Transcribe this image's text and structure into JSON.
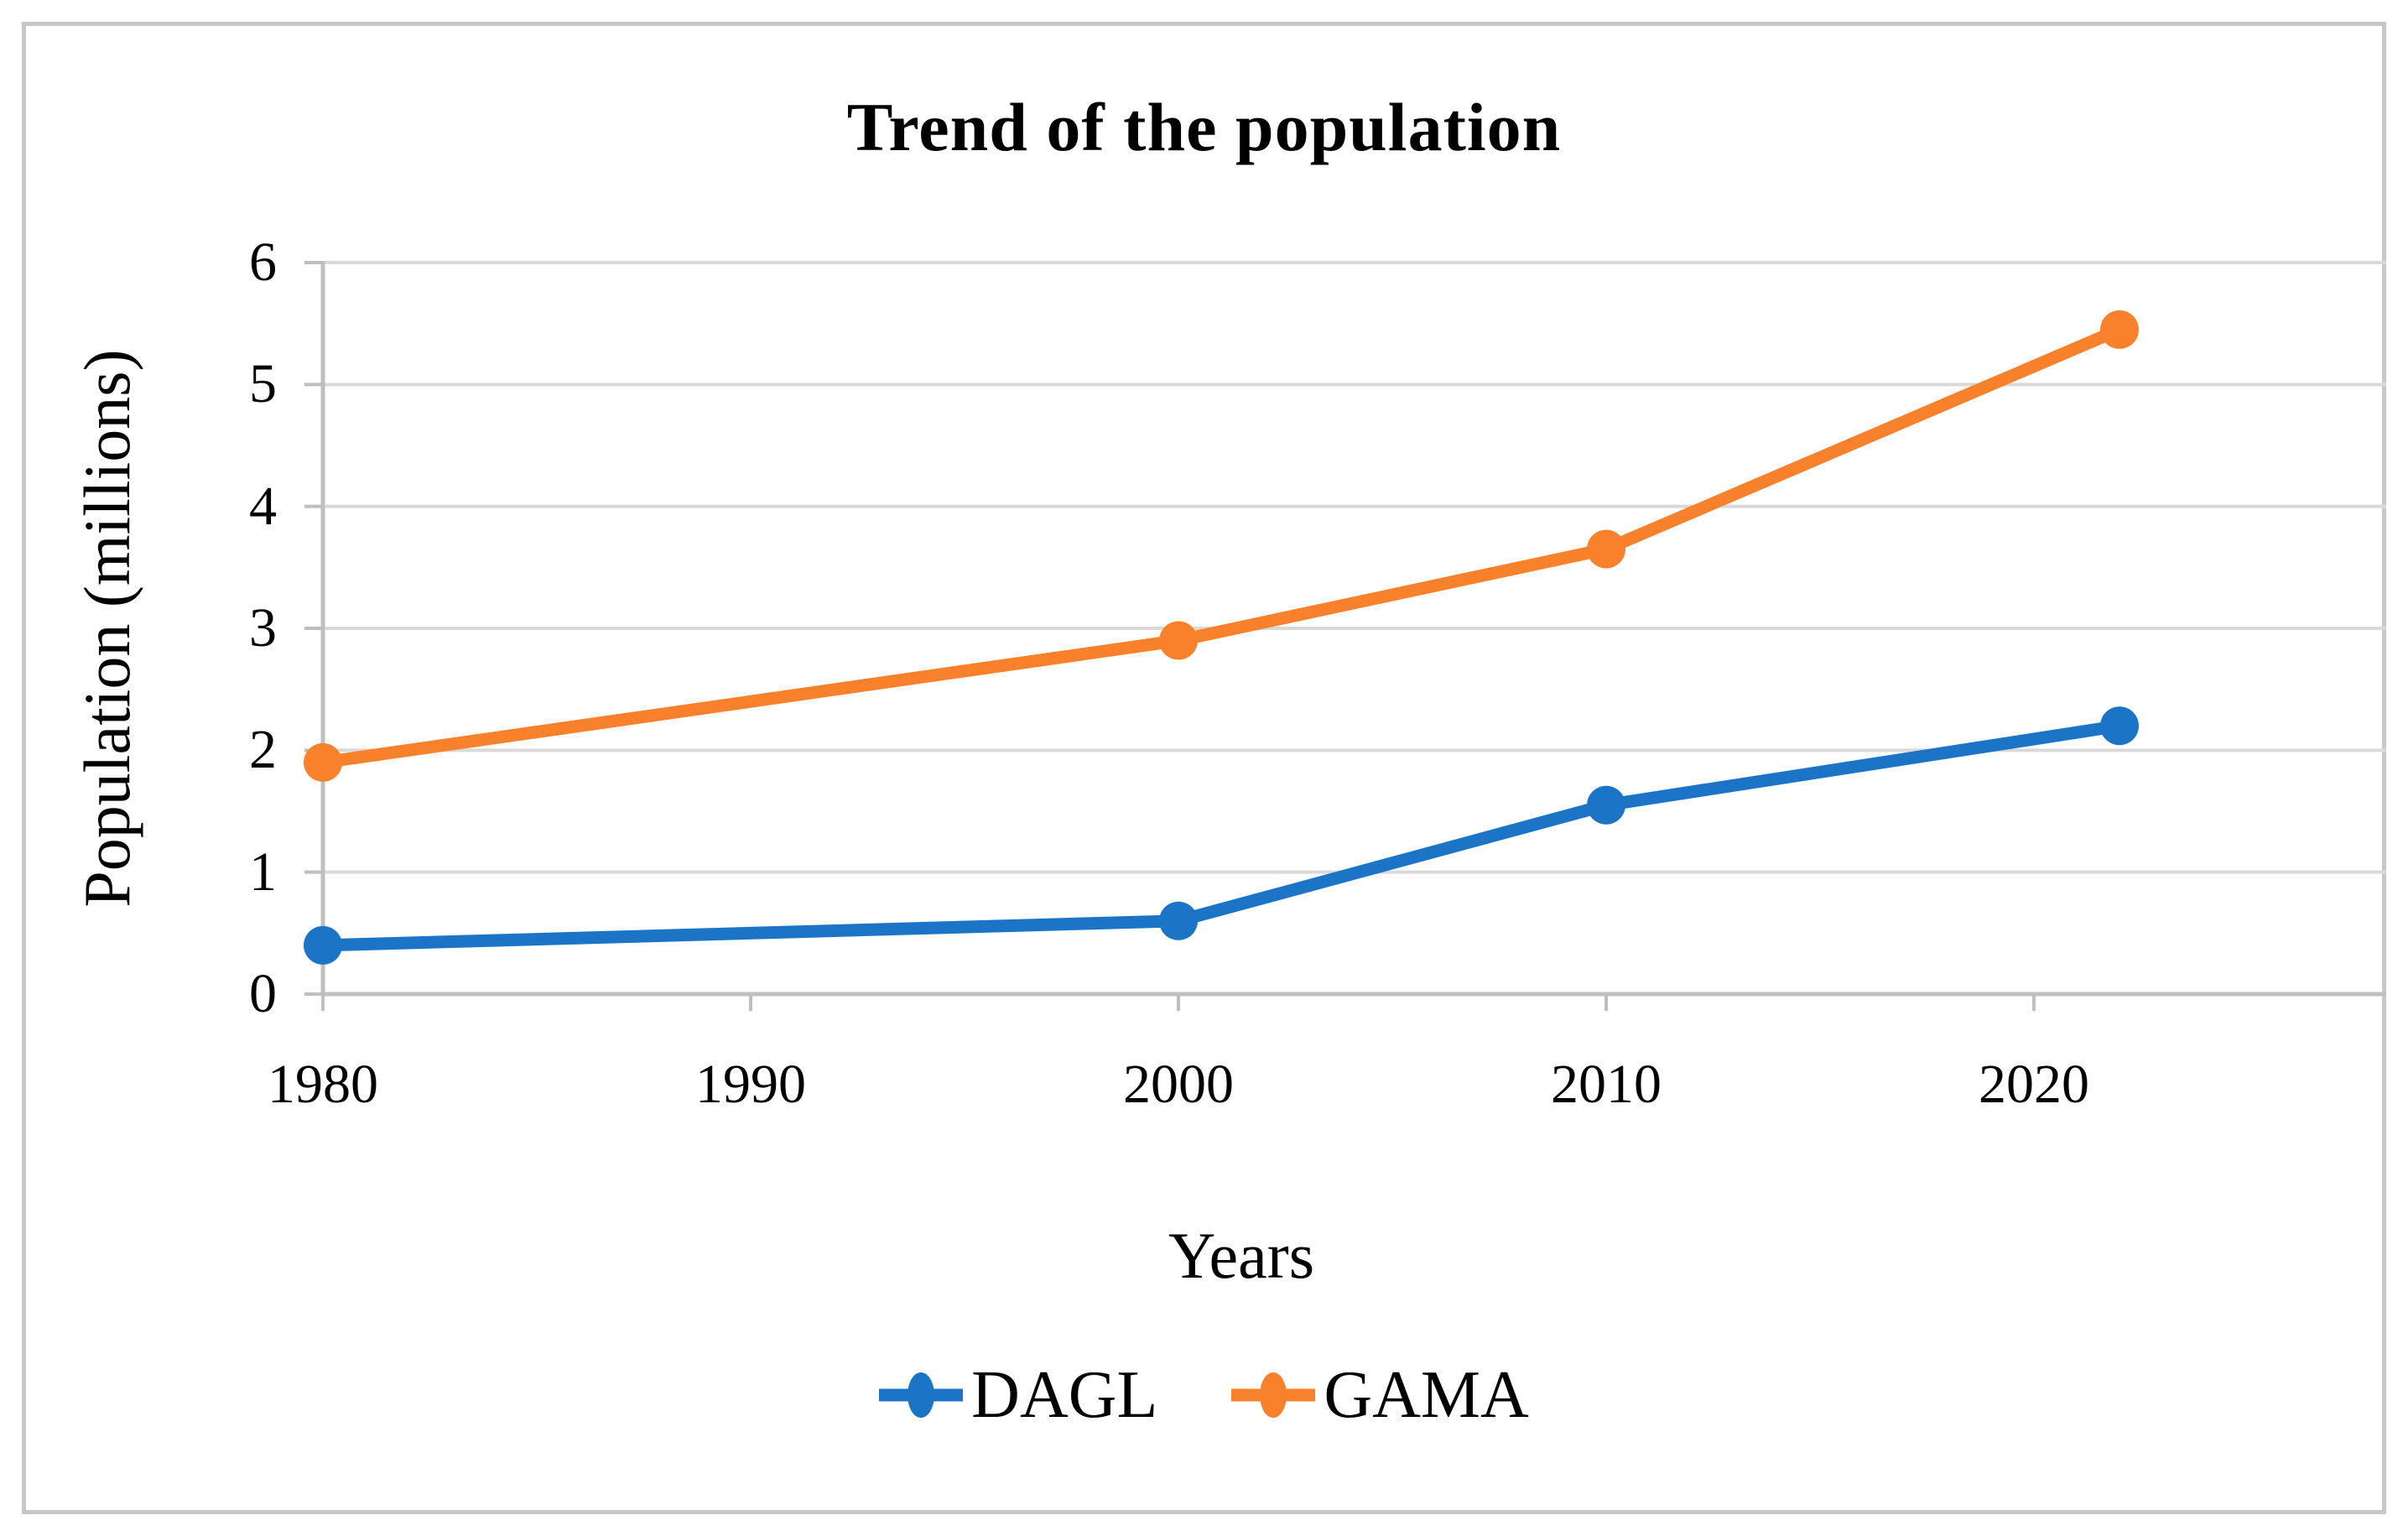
{
  "title": "Trend of the population",
  "axes": {
    "y_title": "Population (millions)",
    "x_title": "Years",
    "y_ticks": [
      0,
      1,
      2,
      3,
      4,
      5,
      6
    ],
    "x_ticks": [
      1980,
      1990,
      2000,
      2010,
      2020
    ]
  },
  "legend": {
    "items": [
      {
        "label": "DAGL",
        "color": "#1b74c5"
      },
      {
        "label": "GAMA",
        "color": "#f9812b"
      }
    ]
  },
  "chart_data": {
    "type": "line",
    "x": [
      1980,
      2000,
      2010,
      2022
    ],
    "series": [
      {
        "name": "DAGL",
        "color": "#1b74c5",
        "values": [
          0.4,
          0.6,
          1.55,
          2.2
        ]
      },
      {
        "name": "GAMA",
        "color": "#f9812b",
        "values": [
          1.9,
          2.9,
          3.65,
          5.45
        ]
      }
    ],
    "title": "Trend of the population",
    "xlabel": "Years",
    "ylabel": "Population (millions)",
    "ylim": [
      0,
      6
    ],
    "xlim": [
      1980,
      2028
    ],
    "x_tick_labels": [
      "1980",
      "1990",
      "2000",
      "2010",
      "2020"
    ],
    "grid": "horizontal",
    "legend_position": "bottom",
    "marker": "circle"
  },
  "colors": {
    "gridline": "#d9d9d9",
    "axis": "#bfbfbf",
    "frame_border": "#c8c8c8",
    "text": "#000000",
    "background": "#ffffff"
  }
}
